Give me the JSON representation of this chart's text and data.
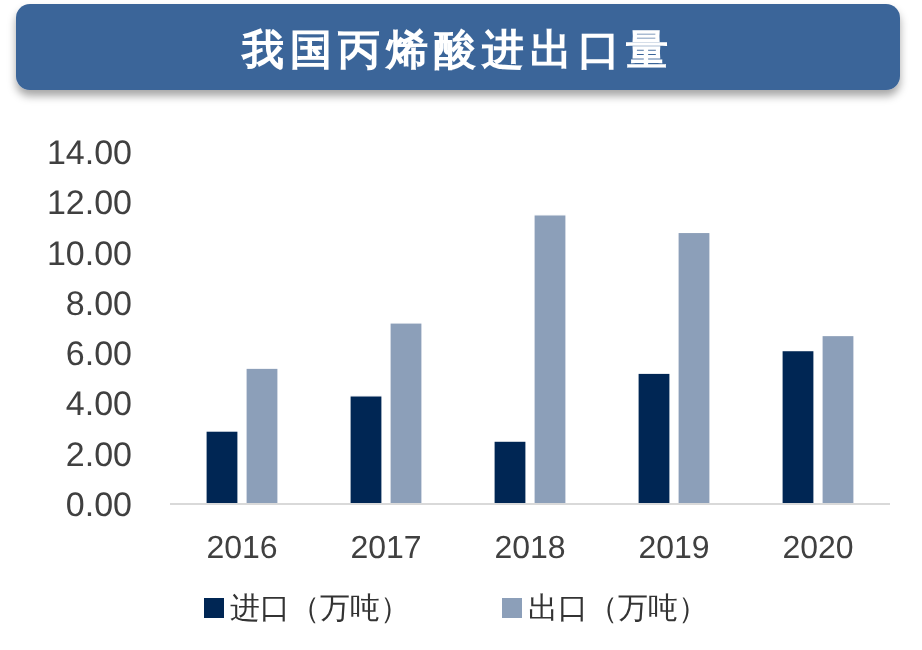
{
  "chart_data": {
    "type": "bar",
    "title": "我国丙烯酸进出口量",
    "categories": [
      "2016",
      "2017",
      "2018",
      "2019",
      "2020"
    ],
    "series": [
      {
        "name": "进口（万吨）",
        "color": "#002654",
        "values": [
          2.9,
          4.3,
          2.5,
          5.2,
          6.1
        ]
      },
      {
        "name": "出口（万吨）",
        "color": "#8c9fb9",
        "values": [
          5.4,
          7.2,
          11.5,
          10.8,
          6.7
        ]
      }
    ],
    "ylim": [
      0,
      14
    ],
    "yticks": [
      {
        "value": 0,
        "label": "0.00"
      },
      {
        "value": 2,
        "label": "2.00"
      },
      {
        "value": 4,
        "label": "4.00"
      },
      {
        "value": 6,
        "label": "6.00"
      },
      {
        "value": 8,
        "label": "8.00"
      },
      {
        "value": 10,
        "label": "10.00"
      },
      {
        "value": 12,
        "label": "12.00"
      },
      {
        "value": 14,
        "label": "14.00"
      }
    ],
    "grid": false,
    "legend": "bottom"
  }
}
